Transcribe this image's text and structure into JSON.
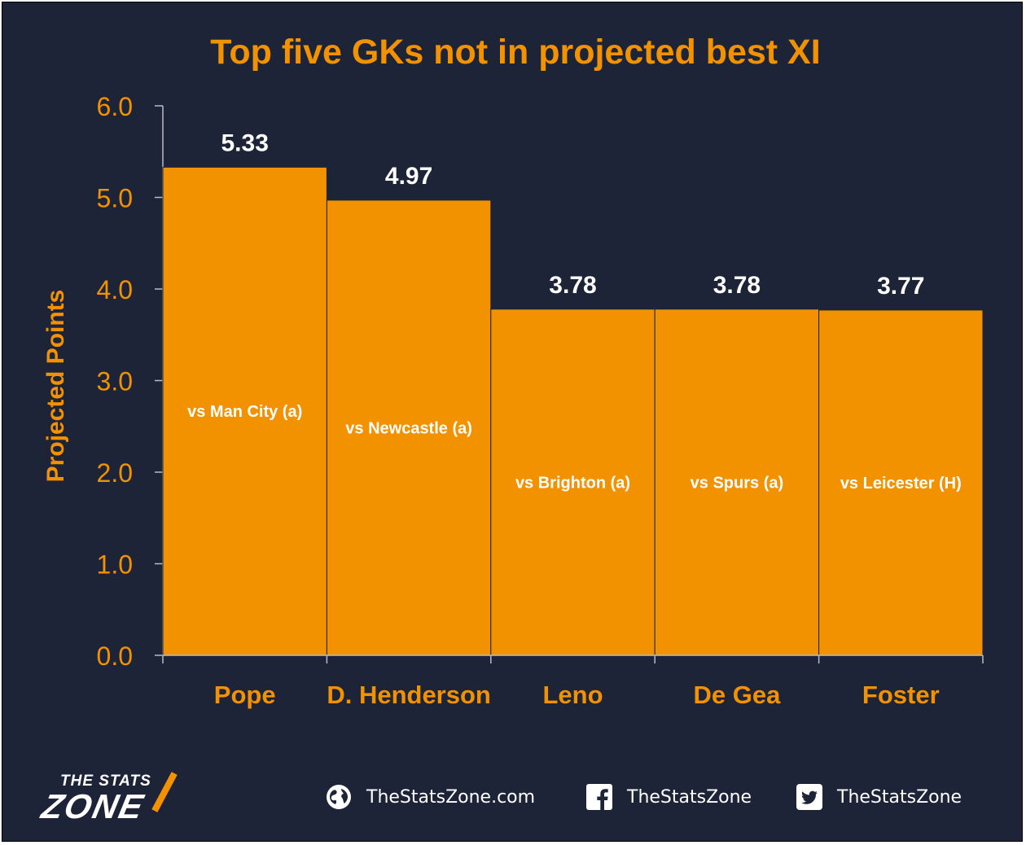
{
  "header": {
    "title": "Top five GKs not in projected best XI"
  },
  "chart_data": {
    "type": "bar",
    "title": "Top five GKs not in projected best XI",
    "ylabel": "Projected Points",
    "xlabel": "",
    "ylim": [
      0,
      6
    ],
    "yticks": [
      "0.0",
      "1.0",
      "2.0",
      "3.0",
      "4.0",
      "5.0",
      "6.0"
    ],
    "categories": [
      "Pope",
      "D. Henderson",
      "Leno",
      "De Gea",
      "Foster"
    ],
    "values": [
      5.33,
      4.97,
      3.78,
      3.78,
      3.77
    ],
    "value_labels": [
      "5.33",
      "4.97",
      "3.78",
      "3.78",
      "3.77"
    ],
    "annotations": [
      "vs Man City (a)",
      "vs Newcastle (a)",
      "vs Brighton (a)",
      "vs Spurs (a)",
      "vs Leicester (H)"
    ],
    "grid": false,
    "bar_color": "#f39200",
    "text_color": "#f39200",
    "value_label_color": "#ffffff"
  },
  "footer": {
    "logo_top": "THE STATS",
    "logo_main": "ZONE",
    "website": "TheStatsZone.com",
    "facebook": "TheStatsZone",
    "twitter": "TheStatsZone",
    "website_icon": "globe-icon",
    "facebook_icon": "facebook-icon",
    "twitter_icon": "twitter-icon"
  },
  "colors": {
    "background": "#1d2437",
    "accent": "#f39200",
    "white": "#ffffff"
  }
}
